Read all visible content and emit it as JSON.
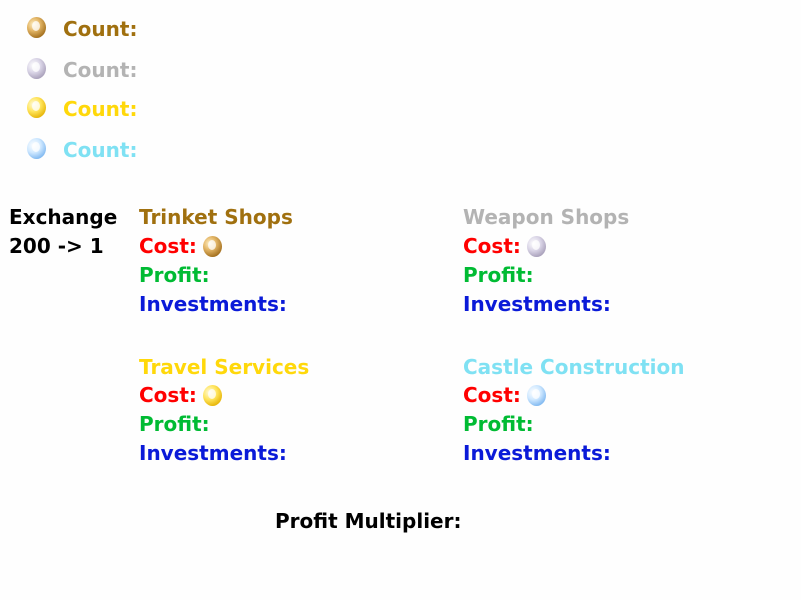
{
  "colors": {
    "bronze": "#a0700f",
    "silver": "#b3b3b3",
    "gold": "#ffd80a",
    "cyan": "#7fe1f3",
    "cost": "#ff0000",
    "profit": "#00bb33",
    "investments": "#0a1ad8",
    "text": "#000000"
  },
  "resources": [
    {
      "icon": "bronze-coin-icon",
      "label": "Count:"
    },
    {
      "icon": "silver-coin-icon",
      "label": "Count:"
    },
    {
      "icon": "gold-coin-icon",
      "label": "Count:"
    },
    {
      "icon": "blue-coin-icon",
      "label": "Count:"
    }
  ],
  "exchange": {
    "label": "Exchange",
    "rate": "200 -> 1"
  },
  "businesses": [
    {
      "title": "Trinket Shops",
      "cost_label": "Cost:",
      "cost_icon": "bronze-coin-icon",
      "profit_label": "Profit:",
      "investments_label": "Investments:"
    },
    {
      "title": "Weapon Shops",
      "cost_label": "Cost:",
      "cost_icon": "silver-coin-icon",
      "profit_label": "Profit:",
      "investments_label": "Investments:"
    },
    {
      "title": "Travel Services",
      "cost_label": "Cost:",
      "cost_icon": "gold-coin-icon",
      "profit_label": "Profit:",
      "investments_label": "Investments:"
    },
    {
      "title": "Castle Construction",
      "cost_label": "Cost:",
      "cost_icon": "blue-coin-icon",
      "profit_label": "Profit:",
      "investments_label": "Investments:"
    }
  ],
  "profit_multiplier": {
    "label": "Profit Multiplier:"
  }
}
